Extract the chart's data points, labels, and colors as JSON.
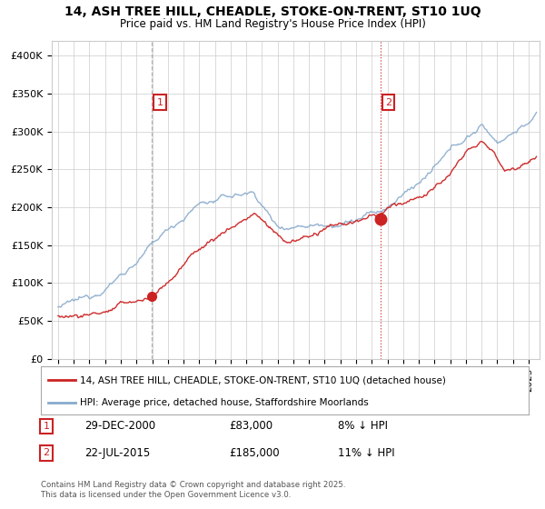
{
  "title_line1": "14, ASH TREE HILL, CHEADLE, STOKE-ON-TRENT, ST10 1UQ",
  "title_line2": "Price paid vs. HM Land Registry's House Price Index (HPI)",
  "sale1_date": "29-DEC-2000",
  "sale1_price": 83000,
  "sale1_label": "£83,000",
  "sale1_pct": "8% ↓ HPI",
  "sale2_date": "22-JUL-2015",
  "sale2_price": 185000,
  "sale2_label": "£185,000",
  "sale2_pct": "11% ↓ HPI",
  "legend_label_red": "14, ASH TREE HILL, CHEADLE, STOKE-ON-TRENT, ST10 1UQ (detached house)",
  "legend_label_blue": "HPI: Average price, detached house, Staffordshire Moorlands",
  "footer": "Contains HM Land Registry data © Crown copyright and database right 2025.\nThis data is licensed under the Open Government Licence v3.0.",
  "red_color": "#cc2222",
  "blue_color": "#88aacc",
  "vline1_color": "#aaaaaa",
  "vline2_color": "#cc2222",
  "background_color": "#ffffff",
  "grid_color": "#cccccc",
  "ylim_max": 420000,
  "ylim_min": 0,
  "sale1_year": 2000.99,
  "sale2_year": 2015.55
}
